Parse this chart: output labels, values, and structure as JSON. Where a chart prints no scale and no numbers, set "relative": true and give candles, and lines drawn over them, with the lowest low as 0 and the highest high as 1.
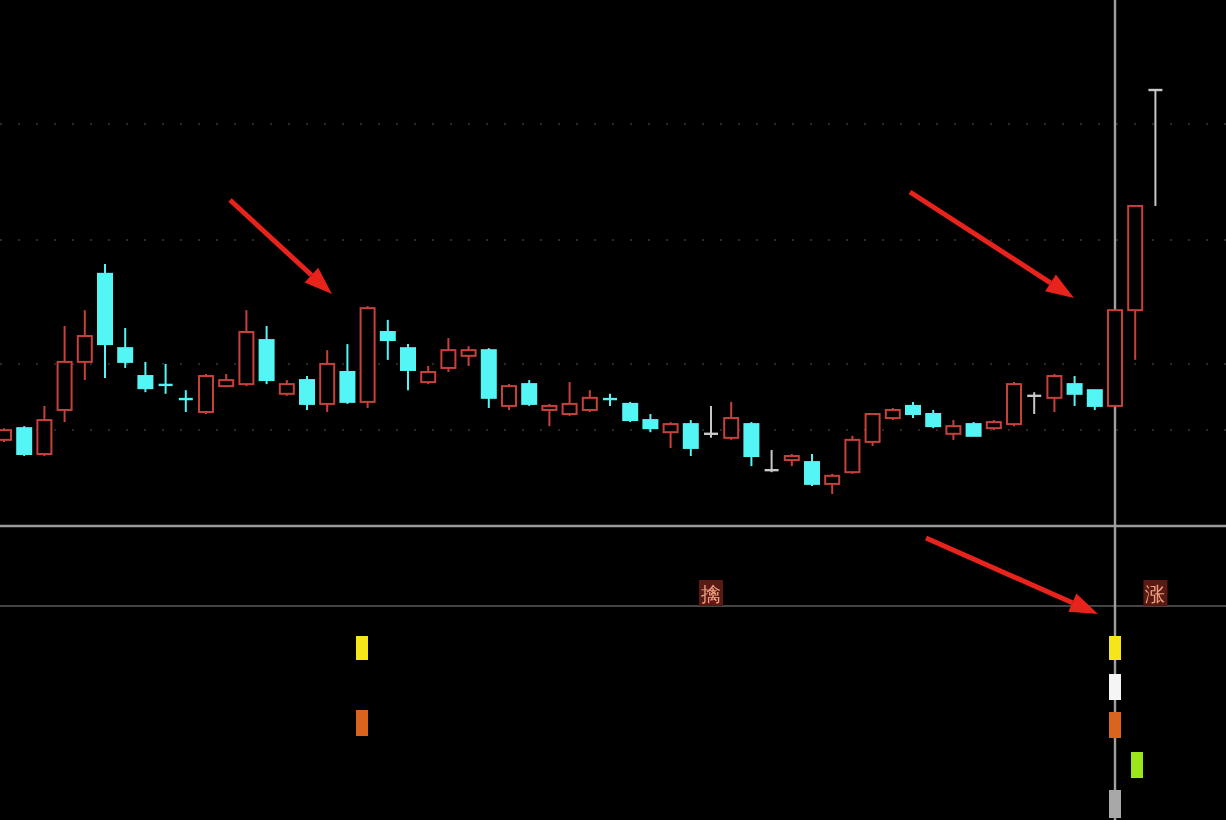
{
  "chart_data": {
    "type": "candlestick",
    "relative": true,
    "categories": [
      null,
      null,
      null,
      null,
      null,
      null,
      null,
      null,
      null,
      null,
      null,
      null,
      null,
      null,
      null,
      null,
      null,
      null,
      null,
      null,
      null,
      null,
      null,
      null,
      null,
      null,
      null,
      null,
      null,
      null,
      null,
      null,
      null,
      null,
      null,
      null,
      null,
      null,
      null,
      null,
      null,
      null,
      null,
      null,
      null,
      null,
      null,
      null,
      null,
      null,
      null,
      null,
      null,
      null,
      null,
      null,
      null,
      null
    ],
    "ohlc": [
      [
        0.134,
        0.163,
        0.129,
        0.158
      ],
      [
        0.163,
        0.168,
        0.094,
        0.099
      ],
      [
        0.099,
        0.218,
        0.094,
        0.183
      ],
      [
        0.208,
        0.416,
        0.178,
        0.327
      ],
      [
        0.327,
        0.455,
        0.282,
        0.391
      ],
      [
        0.545,
        0.569,
        0.287,
        0.371
      ],
      [
        0.361,
        0.411,
        0.312,
        0.327
      ],
      [
        0.292,
        0.327,
        0.252,
        0.262
      ],
      [
        0.27,
        0.322,
        0.248,
        0.265
      ],
      [
        0.235,
        0.257,
        0.203,
        0.23
      ],
      [
        0.203,
        0.297,
        0.198,
        0.292
      ],
      [
        0.267,
        0.297,
        0.267,
        0.282
      ],
      [
        0.272,
        0.455,
        0.267,
        0.401
      ],
      [
        0.381,
        0.416,
        0.272,
        0.282
      ],
      [
        0.248,
        0.282,
        0.243,
        0.272
      ],
      [
        0.282,
        0.292,
        0.208,
        0.223
      ],
      [
        0.223,
        0.356,
        0.203,
        0.322
      ],
      [
        0.302,
        0.371,
        0.223,
        0.228
      ],
      [
        0.228,
        0.465,
        0.213,
        0.46
      ],
      [
        0.401,
        0.431,
        0.332,
        0.381
      ],
      [
        0.361,
        0.371,
        0.257,
        0.307
      ],
      [
        0.277,
        0.317,
        0.272,
        0.302
      ],
      [
        0.312,
        0.386,
        0.302,
        0.356
      ],
      [
        0.342,
        0.366,
        0.317,
        0.356
      ],
      [
        0.356,
        0.361,
        0.213,
        0.238
      ],
      [
        0.218,
        0.272,
        0.208,
        0.267
      ],
      [
        0.272,
        0.282,
        0.218,
        0.223
      ],
      [
        0.208,
        0.223,
        0.168,
        0.218
      ],
      [
        0.198,
        0.277,
        0.193,
        0.223
      ],
      [
        0.208,
        0.257,
        0.203,
        0.238
      ],
      [
        0.235,
        0.248,
        0.218,
        0.23
      ],
      [
        0.223,
        0.228,
        0.178,
        0.183
      ],
      [
        0.183,
        0.198,
        0.153,
        0.163
      ],
      [
        0.153,
        0.178,
        0.114,
        0.173
      ],
      [
        0.173,
        0.183,
        0.094,
        0.114
      ],
      [
        0.149,
        0.218,
        0.139,
        0.149
      ],
      [
        0.139,
        0.228,
        0.134,
        0.188
      ],
      [
        0.173,
        0.178,
        0.069,
        0.094
      ],
      [
        0.059,
        0.109,
        0.054,
        0.059
      ],
      [
        0.084,
        0.099,
        0.069,
        0.094
      ],
      [
        0.079,
        0.099,
        0.02,
        0.025
      ],
      [
        0.025,
        0.05,
        0,
        0.045
      ],
      [
        0.054,
        0.144,
        0.05,
        0.134
      ],
      [
        0.129,
        0.198,
        0.119,
        0.198
      ],
      [
        0.188,
        0.213,
        0.183,
        0.208
      ],
      [
        0.218,
        0.228,
        0.188,
        0.198
      ],
      [
        0.198,
        0.208,
        0.163,
        0.168
      ],
      [
        0.149,
        0.183,
        0.134,
        0.168
      ],
      [
        0.173,
        0.178,
        0.144,
        0.144
      ],
      [
        0.163,
        0.183,
        0.158,
        0.178
      ],
      [
        0.173,
        0.277,
        0.168,
        0.272
      ],
      [
        0.243,
        0.252,
        0.198,
        0.243
      ],
      [
        0.238,
        0.297,
        0.203,
        0.292
      ],
      [
        0.272,
        0.292,
        0.218,
        0.248
      ],
      [
        0.257,
        0.257,
        0.208,
        0.218
      ],
      [
        0.218,
        0.455,
        0.218,
        0.455
      ],
      [
        0.455,
        0.713,
        0.332,
        0.713
      ],
      [
        1,
        1,
        0.713,
        1
      ]
    ],
    "annotations": [
      "擒",
      "涨"
    ]
  }
}
